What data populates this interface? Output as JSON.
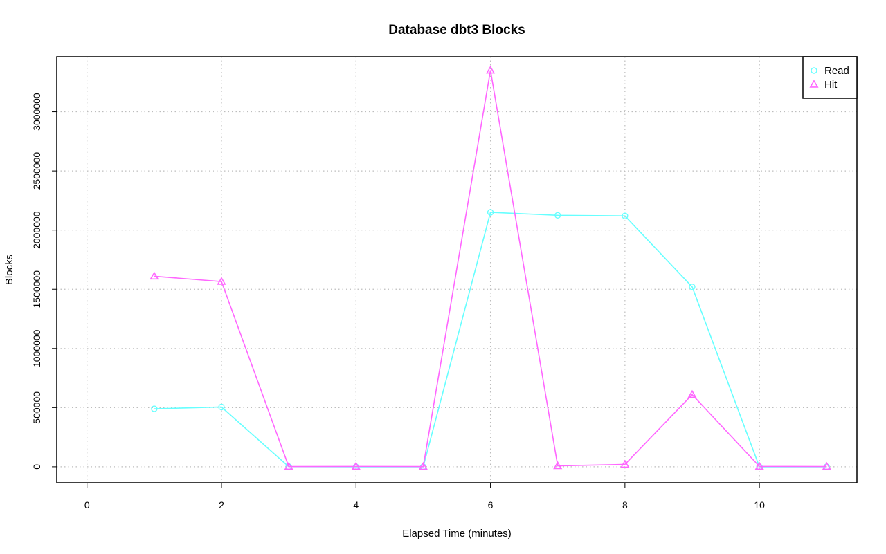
{
  "chart_data": {
    "type": "line",
    "title": "Database dbt3 Blocks",
    "xlabel": "Elapsed Time (minutes)",
    "ylabel": "Blocks",
    "xlim": [
      -0.45,
      11.45
    ],
    "ylim": [
      -135000,
      3465000
    ],
    "x_ticks": [
      0,
      2,
      4,
      6,
      8,
      10
    ],
    "x_tick_labels": [
      "0",
      "2",
      "4",
      "6",
      "8",
      "10"
    ],
    "y_ticks": [
      0,
      500000,
      1000000,
      1500000,
      2000000,
      2500000,
      3000000
    ],
    "y_tick_labels": [
      "0",
      "500000",
      "1000000",
      "1500000",
      "2000000",
      "2500000",
      "3000000"
    ],
    "grid": true,
    "legend_position": "top-right",
    "series": [
      {
        "name": "Read",
        "color": "#66FFFF",
        "marker": "circle",
        "x": [
          1,
          2,
          3,
          4,
          5,
          6,
          7,
          8,
          9,
          10,
          11
        ],
        "y": [
          490000,
          505000,
          1000,
          0,
          0,
          2150000,
          2125000,
          2120000,
          1520000,
          0,
          0
        ]
      },
      {
        "name": "Hit",
        "color": "#FF66FF",
        "marker": "triangle",
        "x": [
          1,
          2,
          3,
          4,
          5,
          6,
          7,
          8,
          9,
          10,
          11
        ],
        "y": [
          1610000,
          1565000,
          2000,
          3000,
          2000,
          3350000,
          8000,
          20000,
          610000,
          3000,
          2000
        ]
      }
    ]
  }
}
